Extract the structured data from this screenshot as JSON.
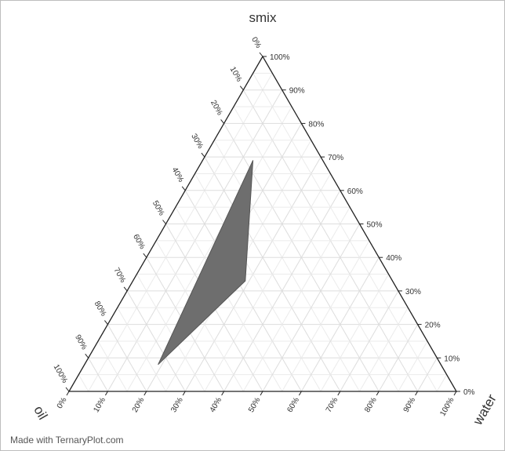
{
  "chart_data": {
    "type": "ternary",
    "axes": {
      "top": "smix",
      "left": "oil",
      "right": "water"
    },
    "tick_values": [
      0,
      10,
      20,
      30,
      40,
      50,
      60,
      70,
      80,
      90,
      100
    ],
    "tick_suffix": "%",
    "grid": true,
    "grid_step": 5,
    "region": {
      "fill": "#6e6e6e",
      "points": [
        {
          "smix": 69,
          "oil": 18,
          "water": 13
        },
        {
          "smix": 33,
          "oil": 38,
          "water": 29
        },
        {
          "smix": 8,
          "oil": 73,
          "water": 19
        }
      ]
    }
  },
  "credit": "Made with TernaryPlot.com"
}
